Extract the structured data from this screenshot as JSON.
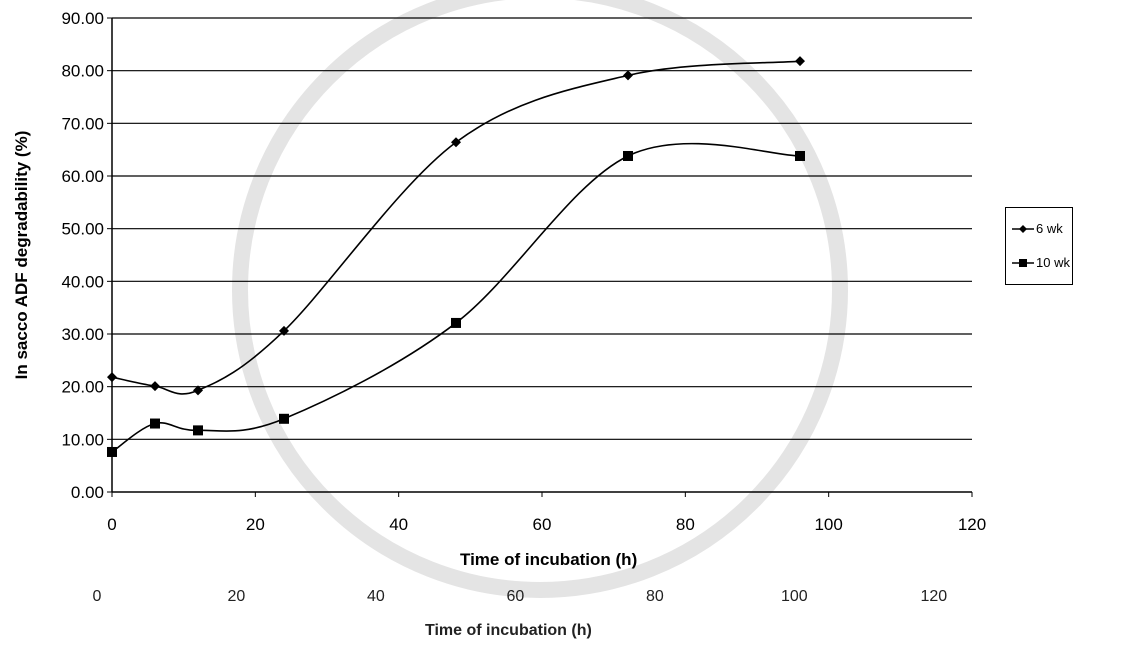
{
  "chart_data": [
    {
      "type": "line",
      "title": "",
      "xlabel": "Time of  incubation (h)",
      "ylabel": "In sacco ADF degradability (%)",
      "xlim": [
        0,
        120
      ],
      "ylim": [
        0,
        90
      ],
      "xticks": [
        "0",
        "20",
        "40",
        "60",
        "80",
        "100",
        "120"
      ],
      "yticks": [
        "0.00",
        "10.00",
        "20.00",
        "30.00",
        "40.00",
        "50.00",
        "60.00",
        "70.00",
        "80.00",
        "90.00"
      ],
      "grid": "horizontal",
      "legend_position": "right",
      "series": [
        {
          "name": "6 wk",
          "marker": "diamond",
          "color": "#000000",
          "x": [
            0,
            6,
            12,
            24,
            48,
            72,
            96
          ],
          "y": [
            21.8,
            20.1,
            19.3,
            30.6,
            66.4,
            79.1,
            81.8
          ]
        },
        {
          "name": "10 wk",
          "marker": "square",
          "color": "#000000",
          "x": [
            0,
            6,
            12,
            24,
            48,
            72,
            96
          ],
          "y": [
            7.6,
            13.0,
            11.7,
            13.9,
            32.1,
            63.8,
            63.8
          ]
        }
      ]
    },
    {
      "type": "axis",
      "xlabel": "Time of incubation (h)",
      "xticks": [
        "0",
        "20",
        "40",
        "60",
        "80",
        "100",
        "120"
      ]
    }
  ]
}
